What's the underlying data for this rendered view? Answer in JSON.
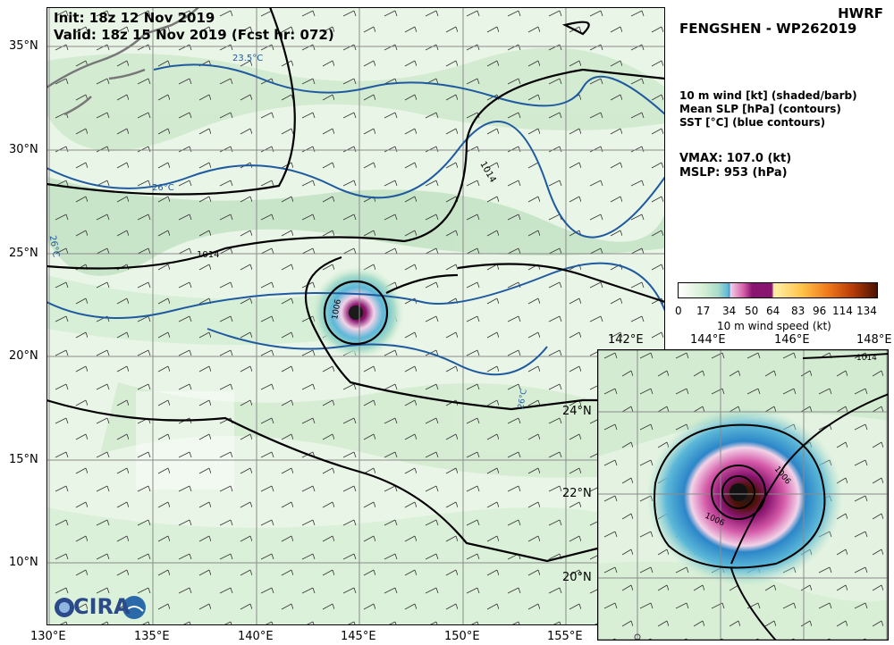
{
  "header": {
    "init_line": "Init:   18z 12 Nov 2019",
    "valid_line": "Valid: 18z 15 Nov 2019 (Fcst hr: 072)",
    "model": "HWRF",
    "storm": "FENGSHEN - WP262019"
  },
  "legend_info": {
    "line1": "10 m wind [kt] (shaded/barb)",
    "line2": "Mean SLP [hPa] (contours)",
    "line3": "SST [°C] (blue contours)",
    "vmax": "VMAX: 107.0 (kt)",
    "mslp": "MSLP:  953 (hPa)"
  },
  "colorbar": {
    "label": "10 m wind speed (kt)",
    "ticks": [
      "0",
      "17",
      "34",
      "50",
      "64",
      "83",
      "96",
      "114",
      "134"
    ],
    "colors": [
      "#ffffff",
      "#d8efd6",
      "#a8dcc9",
      "#5cb8d8",
      "#2c86c8",
      "#f3d3e8",
      "#d45aa8",
      "#8a1570",
      "#fff1a8",
      "#ffc44a",
      "#f07a1c",
      "#b53a06",
      "#4a1204"
    ]
  },
  "main_map": {
    "lon_labels": [
      "130°E",
      "135°E",
      "140°E",
      "145°E",
      "150°E",
      "155°E"
    ],
    "lat_labels": [
      "35°N",
      "30°N",
      "25°N",
      "20°N",
      "15°N",
      "10°N"
    ],
    "contour_labels": [
      "1014",
      "1014",
      "1006",
      "26°C",
      "26°C",
      "23.5°C",
      "26°C"
    ]
  },
  "inset_map": {
    "lon_labels": [
      "142°E",
      "144°E",
      "146°E",
      "148°E"
    ],
    "lat_labels": [
      "24°N",
      "22°N",
      "20°N"
    ],
    "contour_labels": [
      "1014",
      "1006",
      "1006"
    ]
  },
  "logo": {
    "text": "CIRA"
  }
}
